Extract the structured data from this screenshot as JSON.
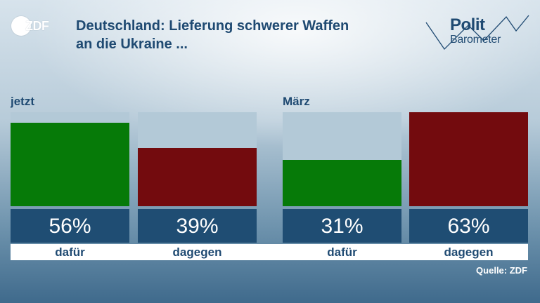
{
  "logo": {
    "text": "ZDF"
  },
  "title_lines": [
    "Deutschland: Lieferung schwerer Waffen",
    "an die Ukraine ..."
  ],
  "brand": {
    "line1": "Polit",
    "line2": "Barometer"
  },
  "colors": {
    "dafuer": "#067a08",
    "dagegen": "#730b0e",
    "bar_bg": "#b3c9d7",
    "value_box": "#1f4d73",
    "text": "#1f4a72"
  },
  "chart_data": {
    "type": "bar",
    "title": "Deutschland: Lieferung schwerer Waffen an die Ukraine ...",
    "groups": [
      {
        "label": "jetzt",
        "bars": [
          {
            "category": "dafür",
            "value": 56,
            "value_label": "56%"
          },
          {
            "category": "dagegen",
            "value": 39,
            "value_label": "39%"
          }
        ]
      },
      {
        "label": "März",
        "bars": [
          {
            "category": "dafür",
            "value": 31,
            "value_label": "31%"
          },
          {
            "category": "dagegen",
            "value": 63,
            "value_label": "63%"
          }
        ]
      }
    ],
    "ylim": [
      0,
      63
    ]
  },
  "source": "Quelle: ZDF"
}
